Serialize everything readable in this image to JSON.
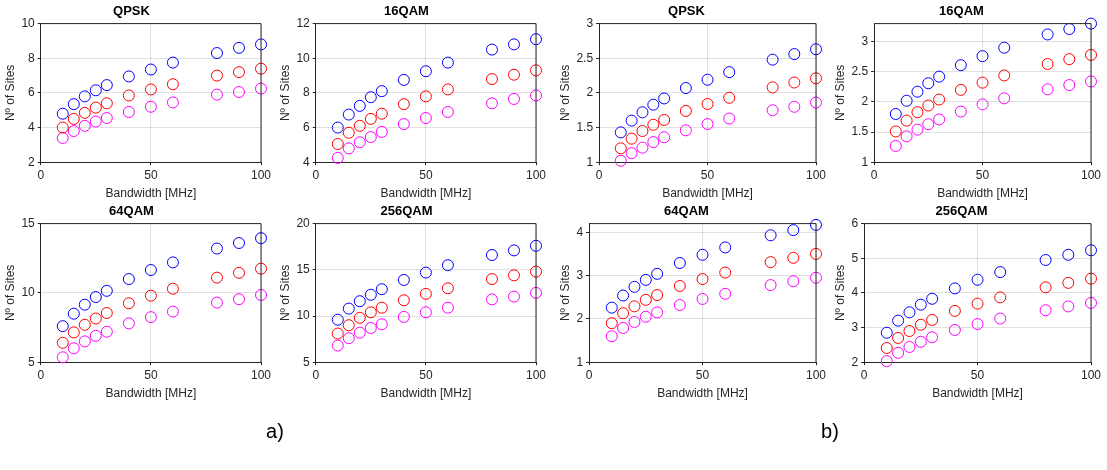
{
  "chart_data": [
    {
      "type": "scatter",
      "title": "QPSK",
      "xlabel": "Bandwidth [MHz]",
      "ylabel": "Nº of Sites",
      "x": [
        10,
        15,
        20,
        25,
        30,
        40,
        50,
        60,
        80,
        90,
        100
      ],
      "xlim": [
        0,
        100
      ],
      "xticks": [
        0,
        50,
        100
      ],
      "ylim": [
        2,
        10
      ],
      "yticks": [
        2,
        4,
        6,
        8,
        10
      ],
      "grid": true,
      "marker": "circle",
      "series": [
        {
          "color": "#0000ff",
          "values": [
            4.8,
            5.35,
            5.8,
            6.15,
            6.45,
            6.95,
            7.35,
            7.75,
            8.3,
            8.6,
            8.8
          ]
        },
        {
          "color": "#ff0000",
          "values": [
            4.0,
            4.5,
            4.85,
            5.15,
            5.4,
            5.85,
            6.2,
            6.5,
            7.0,
            7.2,
            7.4
          ]
        },
        {
          "color": "#ff00ff",
          "values": [
            3.4,
            3.8,
            4.1,
            4.35,
            4.55,
            4.9,
            5.2,
            5.45,
            5.9,
            6.05,
            6.25
          ]
        }
      ]
    },
    {
      "type": "scatter",
      "title": "16QAM",
      "xlabel": "Bandwidth [MHz]",
      "ylabel": "Nº of Sites",
      "x": [
        10,
        15,
        20,
        25,
        30,
        40,
        50,
        60,
        80,
        90,
        100
      ],
      "xlim": [
        0,
        100
      ],
      "xticks": [
        0,
        50,
        100
      ],
      "ylim": [
        4,
        12
      ],
      "yticks": [
        4,
        6,
        8,
        10,
        12
      ],
      "grid": true,
      "marker": "circle",
      "series": [
        {
          "color": "#0000ff",
          "values": [
            6.0,
            6.75,
            7.25,
            7.75,
            8.1,
            8.75,
            9.25,
            9.75,
            10.5,
            10.8,
            11.1
          ]
        },
        {
          "color": "#ff0000",
          "values": [
            5.05,
            5.7,
            6.1,
            6.5,
            6.8,
            7.35,
            7.8,
            8.2,
            8.8,
            9.05,
            9.3
          ]
        },
        {
          "color": "#ff00ff",
          "values": [
            4.25,
            4.8,
            5.15,
            5.45,
            5.75,
            6.2,
            6.55,
            6.9,
            7.4,
            7.65,
            7.85
          ]
        }
      ]
    },
    {
      "type": "scatter",
      "title": "64QAM",
      "xlabel": "Bandwidth [MHz]",
      "ylabel": "Nº of Sites",
      "x": [
        10,
        15,
        20,
        25,
        30,
        40,
        50,
        60,
        80,
        90,
        100
      ],
      "xlim": [
        0,
        100
      ],
      "xticks": [
        0,
        50,
        100
      ],
      "ylim": [
        5,
        15
      ],
      "yticks": [
        5,
        10,
        15
      ],
      "grid": true,
      "marker": "circle",
      "annotations": [
        "a)"
      ],
      "series": [
        {
          "color": "#0000ff",
          "values": [
            7.6,
            8.5,
            9.15,
            9.7,
            10.15,
            11.0,
            11.65,
            12.2,
            13.2,
            13.6,
            13.95
          ]
        },
        {
          "color": "#ff0000",
          "values": [
            6.4,
            7.15,
            7.7,
            8.15,
            8.55,
            9.25,
            9.8,
            10.3,
            11.1,
            11.45,
            11.75
          ]
        },
        {
          "color": "#ff00ff",
          "values": [
            5.35,
            6.0,
            6.5,
            6.9,
            7.2,
            7.8,
            8.25,
            8.65,
            9.3,
            9.55,
            9.85
          ]
        }
      ]
    },
    {
      "type": "scatter",
      "title": "256QAM",
      "xlabel": "Bandwidth [MHz]",
      "ylabel": "Nº of Sites",
      "x": [
        10,
        15,
        20,
        25,
        30,
        40,
        50,
        60,
        80,
        90,
        100
      ],
      "xlim": [
        0,
        100
      ],
      "xticks": [
        0,
        50,
        100
      ],
      "ylim": [
        5,
        20
      ],
      "yticks": [
        5,
        10,
        15,
        20
      ],
      "grid": true,
      "marker": "circle",
      "series": [
        {
          "color": "#0000ff",
          "values": [
            9.6,
            10.8,
            11.6,
            12.3,
            12.9,
            13.9,
            14.7,
            15.5,
            16.6,
            17.1,
            17.6
          ]
        },
        {
          "color": "#ff0000",
          "values": [
            8.1,
            9.0,
            9.8,
            10.4,
            10.9,
            11.7,
            12.4,
            13.0,
            14.0,
            14.4,
            14.8
          ]
        },
        {
          "color": "#ff00ff",
          "values": [
            6.8,
            7.6,
            8.2,
            8.7,
            9.1,
            9.9,
            10.4,
            10.9,
            11.8,
            12.1,
            12.5
          ]
        }
      ]
    },
    {
      "type": "scatter",
      "title": "QPSK",
      "xlabel": "Bandwidth [MHz]",
      "ylabel": "Nº of Sites",
      "x": [
        10,
        15,
        20,
        25,
        30,
        40,
        50,
        60,
        80,
        90,
        100
      ],
      "xlim": [
        0,
        100
      ],
      "xticks": [
        0,
        50,
        100
      ],
      "ylim": [
        1,
        3
      ],
      "yticks": [
        1,
        1.5,
        2,
        2.5,
        3
      ],
      "grid": true,
      "marker": "circle",
      "series": [
        {
          "color": "#0000ff",
          "values": [
            1.43,
            1.6,
            1.72,
            1.83,
            1.92,
            2.07,
            2.19,
            2.3,
            2.48,
            2.56,
            2.63
          ]
        },
        {
          "color": "#ff0000",
          "values": [
            1.2,
            1.34,
            1.45,
            1.54,
            1.61,
            1.74,
            1.84,
            1.93,
            2.08,
            2.15,
            2.21
          ]
        },
        {
          "color": "#ff00ff",
          "values": [
            1.02,
            1.13,
            1.21,
            1.29,
            1.36,
            1.46,
            1.55,
            1.63,
            1.75,
            1.8,
            1.86
          ]
        }
      ]
    },
    {
      "type": "scatter",
      "title": "16QAM",
      "xlabel": "Bandwidth [MHz]",
      "ylabel": "Nº of Sites",
      "x": [
        10,
        15,
        20,
        25,
        30,
        40,
        50,
        60,
        80,
        90,
        100
      ],
      "xlim": [
        0,
        100
      ],
      "xticks": [
        0,
        50,
        100
      ],
      "ylim": [
        1,
        3.3
      ],
      "yticks": [
        1,
        1.5,
        2,
        2.5,
        3
      ],
      "grid": true,
      "marker": "circle",
      "series": [
        {
          "color": "#0000ff",
          "values": [
            1.8,
            2.02,
            2.17,
            2.31,
            2.42,
            2.61,
            2.76,
            2.9,
            3.12,
            3.21,
            3.3
          ]
        },
        {
          "color": "#ff0000",
          "values": [
            1.51,
            1.69,
            1.83,
            1.94,
            2.04,
            2.2,
            2.32,
            2.44,
            2.63,
            2.71,
            2.78
          ]
        },
        {
          "color": "#ff00ff",
          "values": [
            1.27,
            1.43,
            1.54,
            1.63,
            1.71,
            1.84,
            1.96,
            2.06,
            2.21,
            2.28,
            2.34
          ]
        }
      ]
    },
    {
      "type": "scatter",
      "title": "64QAM",
      "xlabel": "Bandwidth [MHz]",
      "ylabel": "Nº of Sites",
      "x": [
        10,
        15,
        20,
        25,
        30,
        40,
        50,
        60,
        80,
        90,
        100
      ],
      "xlim": [
        0,
        100
      ],
      "xticks": [
        0,
        50,
        100
      ],
      "ylim": [
        1,
        4.2
      ],
      "yticks": [
        1,
        2,
        3,
        4
      ],
      "grid": true,
      "marker": "circle",
      "annotations": [
        "b)"
      ],
      "series": [
        {
          "color": "#0000ff",
          "values": [
            2.26,
            2.54,
            2.74,
            2.9,
            3.04,
            3.29,
            3.48,
            3.65,
            3.93,
            4.05,
            4.17
          ]
        },
        {
          "color": "#ff0000",
          "values": [
            1.9,
            2.13,
            2.29,
            2.44,
            2.55,
            2.76,
            2.92,
            3.07,
            3.31,
            3.41,
            3.5
          ]
        },
        {
          "color": "#ff00ff",
          "values": [
            1.6,
            1.79,
            1.93,
            2.05,
            2.15,
            2.32,
            2.46,
            2.58,
            2.78,
            2.87,
            2.95
          ]
        }
      ]
    },
    {
      "type": "scatter",
      "title": "256QAM",
      "xlabel": "Bandwidth [MHz]",
      "ylabel": "Nº of Sites",
      "x": [
        10,
        15,
        20,
        25,
        30,
        40,
        50,
        60,
        80,
        90,
        100
      ],
      "xlim": [
        0,
        100
      ],
      "xticks": [
        0,
        50,
        100
      ],
      "ylim": [
        2,
        6
      ],
      "yticks": [
        2,
        3,
        4,
        5,
        6
      ],
      "grid": true,
      "marker": "circle",
      "series": [
        {
          "color": "#0000ff",
          "values": [
            2.85,
            3.2,
            3.44,
            3.66,
            3.83,
            4.13,
            4.38,
            4.6,
            4.95,
            5.1,
            5.23
          ]
        },
        {
          "color": "#ff0000",
          "values": [
            2.41,
            2.7,
            2.9,
            3.08,
            3.22,
            3.48,
            3.69,
            3.87,
            4.16,
            4.29,
            4.41
          ]
        },
        {
          "color": "#ff00ff",
          "values": [
            2.03,
            2.27,
            2.44,
            2.59,
            2.72,
            2.93,
            3.1,
            3.26,
            3.5,
            3.61,
            3.71
          ]
        }
      ]
    }
  ]
}
